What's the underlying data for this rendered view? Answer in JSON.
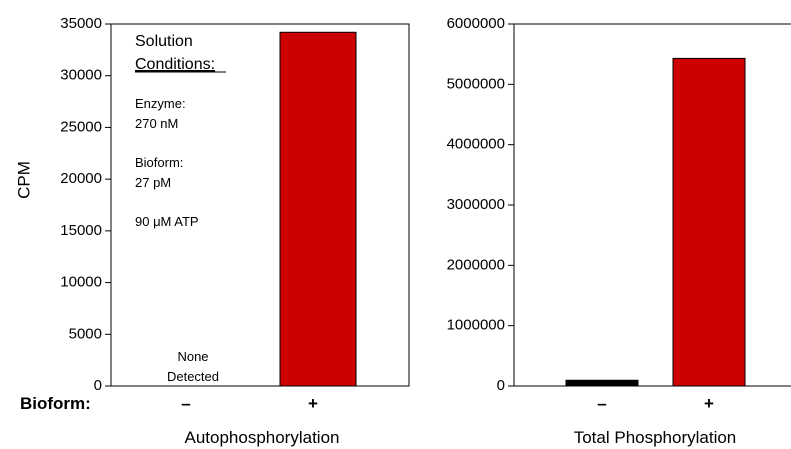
{
  "chart_data": [
    {
      "type": "bar",
      "title": "Autophosphorylation",
      "ylabel": "CPM",
      "row_label": "Bioform:",
      "categories": [
        "–",
        "+"
      ],
      "values": [
        0,
        34200
      ],
      "ylim": [
        0,
        35000
      ],
      "yticks": [
        "0",
        "5000",
        "10000",
        "15000",
        "20000",
        "25000",
        "30000",
        "35000"
      ],
      "bar_colors": [
        "#000000",
        "#cc0000"
      ],
      "annotation_none": [
        "None",
        "Detected"
      ],
      "conditions": {
        "heading_line1": "Solution",
        "heading_line2": "Conditions",
        "heading_colon": ":",
        "enzyme_label": "Enzyme:",
        "enzyme_value": "270 nM",
        "bioform_label": "Bioform:",
        "bioform_value": "27 pM",
        "atp": "90 μM ATP"
      }
    },
    {
      "type": "bar",
      "title": "Total Phosphorylation",
      "categories": [
        "–",
        "+"
      ],
      "values": [
        95000,
        5430000
      ],
      "ylim": [
        0,
        6000000
      ],
      "yticks": [
        "0",
        "1000000",
        "2000000",
        "3000000",
        "4000000",
        "5000000",
        "6000000"
      ],
      "bar_colors": [
        "#000000",
        "#cc0000"
      ]
    }
  ]
}
